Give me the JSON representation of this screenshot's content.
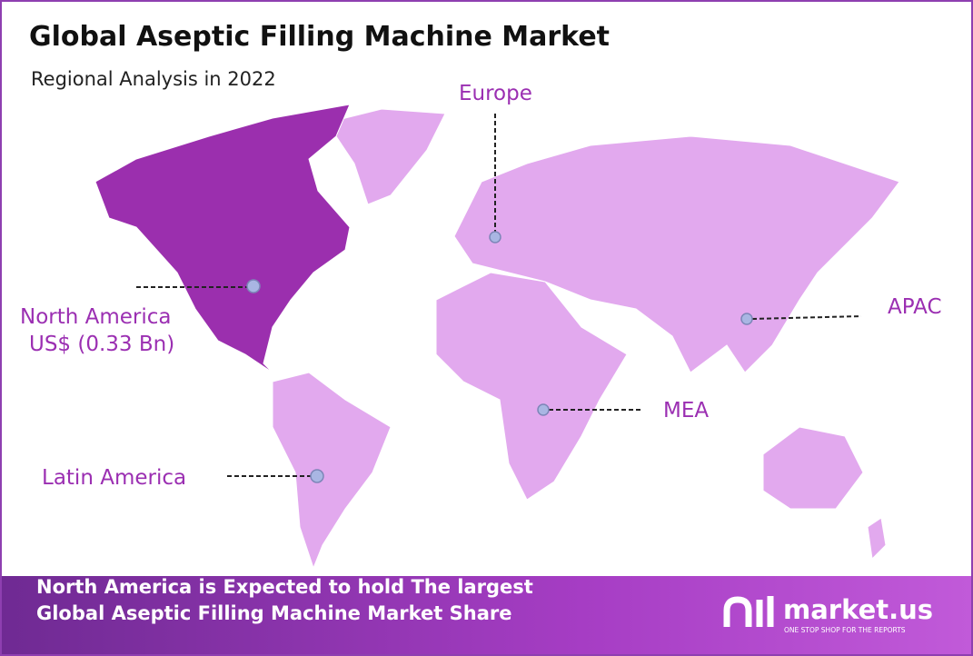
{
  "header": {
    "title": "Global Aseptic Filling Machine Market",
    "subtitle": "Regional Analysis in 2022"
  },
  "regions": [
    {
      "label": "Europe"
    },
    {
      "label": "APAC"
    },
    {
      "label": "MEA"
    },
    {
      "label": "Latin America"
    },
    {
      "label": "North America",
      "value_label": "US$ (0.33 Bn)"
    }
  ],
  "footer": {
    "lines": [
      "North America is Expected to hold The largest",
      "Global Aseptic Filling Machine Market Share"
    ],
    "brand": "market.us",
    "tagline": "ONE STOP SHOP FOR THE REPORTS"
  }
}
